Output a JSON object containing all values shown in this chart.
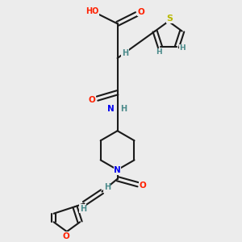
{
  "bg_color": "#ececec",
  "bond_color": "#1a1a1a",
  "bond_width": 1.5,
  "atom_colors": {
    "O": "#ff2000",
    "N": "#0000ee",
    "S": "#b8b800",
    "H_label": "#4a8a8a",
    "C": "#1a1a1a"
  },
  "font_size_atom": 7.5,
  "figsize": [
    3.0,
    3.0
  ],
  "dpi": 100,
  "xlim": [
    0,
    10
  ],
  "ylim": [
    0,
    10
  ]
}
